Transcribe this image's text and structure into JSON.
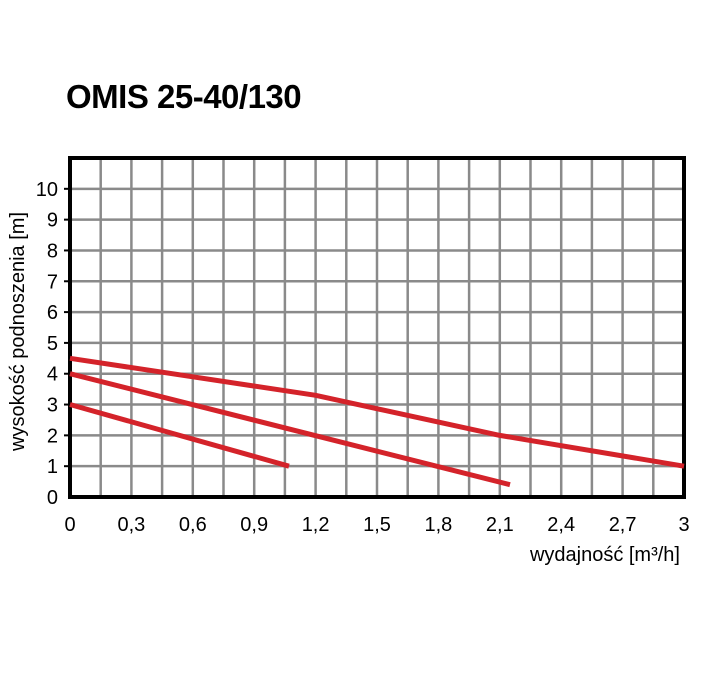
{
  "chart_data": {
    "type": "line",
    "title": "OMIS 25-40/130",
    "xlabel": "wydajność [m³/h]",
    "ylabel": "wysokość podnoszenia [m]",
    "xlim": [
      0,
      3
    ],
    "ylim": [
      0,
      11
    ],
    "x_ticks": [
      "0",
      "0,3",
      "0,6",
      "0,9",
      "1,2",
      "1,5",
      "1,8",
      "2,1",
      "2,4",
      "2,7",
      "3"
    ],
    "x_tick_values": [
      0,
      0.3,
      0.6,
      0.9,
      1.2,
      1.5,
      1.8,
      2.1,
      2.4,
      2.7,
      3.0
    ],
    "y_ticks": [
      "0",
      "1",
      "2",
      "3",
      "4",
      "5",
      "6",
      "7",
      "8",
      "9",
      "10"
    ],
    "y_tick_values": [
      0,
      1,
      2,
      3,
      4,
      5,
      6,
      7,
      8,
      9,
      10
    ],
    "grid": true,
    "series": [
      {
        "x": [
          0,
          1.07
        ],
        "y": [
          3.0,
          1.0
        ]
      },
      {
        "x": [
          0,
          2.15
        ],
        "y": [
          4.0,
          0.4
        ]
      },
      {
        "x": [
          0,
          3.0
        ],
        "y": [
          4.5,
          1.0
        ],
        "points": [
          [
            0,
            4.5
          ],
          [
            1.2,
            3.3
          ],
          [
            2.1,
            2.0
          ],
          [
            3.0,
            1.0
          ]
        ]
      }
    ],
    "line_color": "#d4232a",
    "grid_color": "#8a8a8a",
    "frame_color": "#000000"
  }
}
